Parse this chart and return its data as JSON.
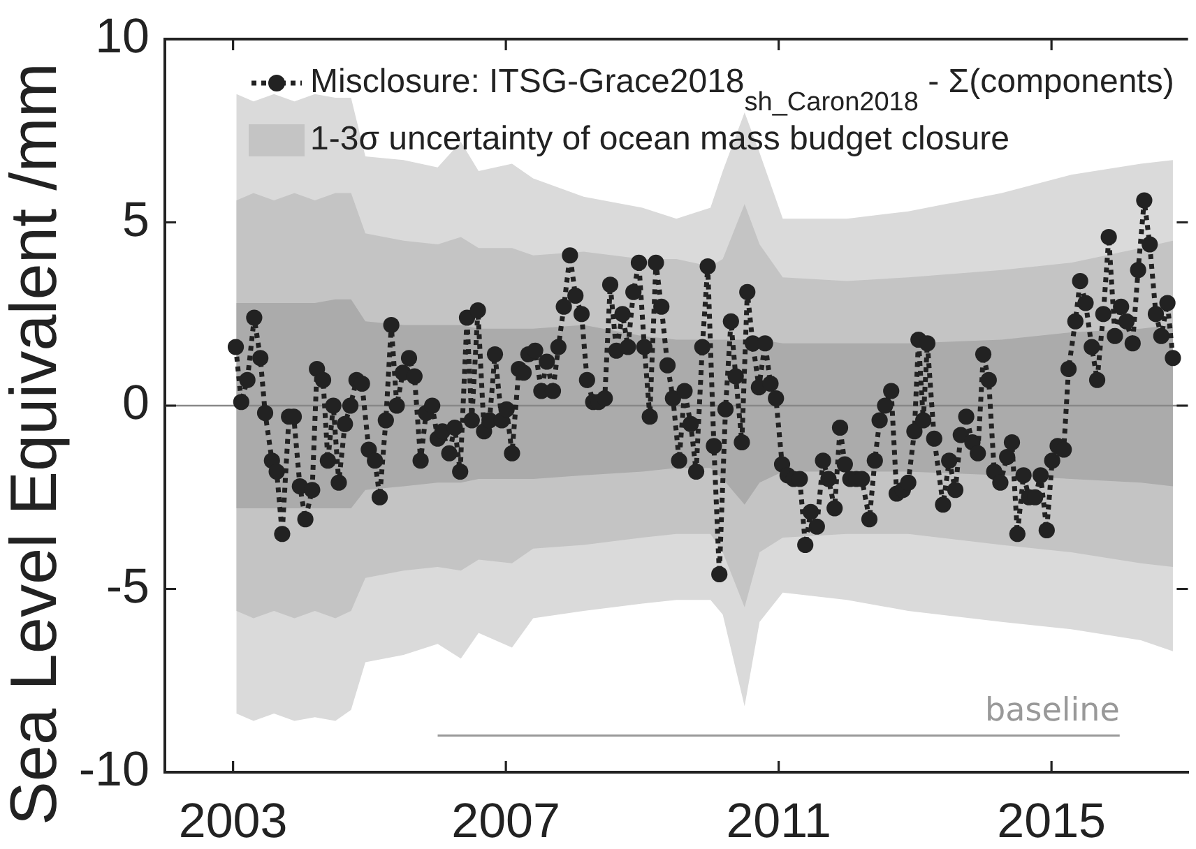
{
  "chart_data": {
    "type": "line",
    "ylabel": "Sea Level Equivalent /mm",
    "xlim": [
      2002,
      2017
    ],
    "xticks": [
      2003,
      2007,
      2011,
      2015
    ],
    "ylim": [
      -10,
      10
    ],
    "yticks": [
      -10,
      -5,
      0,
      5,
      10
    ],
    "legend": "top left",
    "marker": "circle",
    "line_style": "dotted",
    "x": [
      2003.04,
      2003.12,
      2003.21,
      2003.31,
      2003.4,
      2003.47,
      2003.57,
      2003.64,
      2003.72,
      2003.82,
      2003.89,
      2003.98,
      2004.06,
      2004.16,
      2004.23,
      2004.32,
      2004.39,
      2004.47,
      2004.55,
      2004.64,
      2004.72,
      2004.81,
      2004.89,
      2004.99,
      2005.08,
      2005.15,
      2005.24,
      2005.32,
      2005.4,
      2005.49,
      2005.58,
      2005.66,
      2005.75,
      2005.83,
      2005.92,
      2006.0,
      2006.07,
      2006.17,
      2006.25,
      2006.33,
      2006.43,
      2006.5,
      2006.59,
      2006.68,
      2006.76,
      2006.84,
      2006.94,
      2007.01,
      2007.09,
      2007.19,
      2007.26,
      2007.33,
      2007.43,
      2007.52,
      2007.6,
      2007.69,
      2007.77,
      2007.85,
      2007.94,
      2008.02,
      2008.11,
      2008.19,
      2008.28,
      2008.36,
      2008.45,
      2008.53,
      2008.62,
      2008.71,
      2008.79,
      2008.87,
      2008.95,
      2009.03,
      2009.11,
      2009.2,
      2009.28,
      2009.37,
      2009.45,
      2009.54,
      2009.62,
      2009.71,
      2009.79,
      2009.88,
      2009.96,
      2010.05,
      2010.13,
      2010.22,
      2010.3,
      2010.37,
      2010.46,
      2010.54,
      2010.62,
      2010.71,
      2010.8,
      2010.88,
      2010.96,
      2011.05,
      2011.13,
      2011.22,
      2011.31,
      2011.39,
      2011.47,
      2011.56,
      2011.65,
      2011.73,
      2011.82,
      2011.9,
      2011.97,
      2012.05,
      2012.14,
      2012.22,
      2012.33,
      2012.41,
      2012.48,
      2012.56,
      2012.65,
      2012.73,
      2012.82,
      2012.9,
      2012.99,
      2013.05,
      2013.12,
      2013.18,
      2013.28,
      2013.41,
      2013.5,
      2013.59,
      2013.67,
      2013.75,
      2013.84,
      2013.92,
      2014.0,
      2014.08,
      2014.16,
      2014.25,
      2014.35,
      2014.42,
      2014.5,
      2014.59,
      2014.67,
      2014.76,
      2014.84,
      2014.93,
      2015.01,
      2015.09,
      2015.18,
      2015.25,
      2015.35,
      2015.42,
      2015.5,
      2015.59,
      2015.67,
      2015.76,
      2015.84,
      2015.93,
      2016.02,
      2016.1,
      2016.19,
      2016.27,
      2016.36,
      2016.44,
      2016.53,
      2016.61,
      2016.7,
      2016.78
    ],
    "series": [
      {
        "name": "Misclosure: ITSG-Grace2018$_{sh_Caron2018}$ - Σ(components)",
        "color": "#222222",
        "values": [
          1.6,
          0.1,
          0.7,
          2.4,
          1.3,
          -0.2,
          -1.5,
          -1.8,
          -3.5,
          -0.3,
          -0.3,
          -2.2,
          -3.1,
          -2.3,
          1.0,
          0.7,
          -1.5,
          0.0,
          -2.1,
          -0.5,
          0.0,
          0.7,
          0.6,
          -1.2,
          -1.5,
          -2.5,
          -0.4,
          2.2,
          0.0,
          0.9,
          1.3,
          0.8,
          -1.5,
          -0.2,
          0.0,
          -0.9,
          -0.7,
          -1.3,
          -0.6,
          -1.8,
          2.4,
          -0.4,
          2.6,
          -0.7,
          -0.4,
          1.4,
          -0.4,
          -0.1,
          -1.3,
          1.0,
          0.9,
          1.4,
          1.5,
          0.4,
          1.2,
          0.4,
          1.6,
          2.7,
          4.1,
          3.0,
          2.5,
          0.7,
          0.1,
          0.1,
          0.2,
          3.3,
          1.5,
          2.5,
          1.6,
          3.1,
          3.9,
          1.6,
          -0.3,
          3.9,
          2.7,
          1.1,
          0.2,
          -1.5,
          0.4,
          -0.5,
          -1.8,
          1.6,
          3.8,
          -1.1,
          -4.6,
          -0.1,
          2.3,
          0.8,
          -1.0,
          3.1,
          1.7,
          0.5,
          1.7,
          0.6,
          0.2,
          -1.6,
          -1.9,
          -2.0,
          -2.0,
          -3.8,
          -2.9,
          -3.3,
          -1.5,
          -2.0,
          -2.8,
          -0.6,
          -1.6,
          -2.0,
          -2.0,
          -2.0,
          -3.1,
          -1.5,
          -0.4,
          0.0,
          0.4,
          -2.4,
          -2.3,
          -2.1,
          -0.7,
          1.8,
          -0.4,
          1.7,
          -0.9,
          -2.7,
          -1.5,
          -2.3,
          -0.8,
          -0.3,
          -1.0,
          -1.3,
          1.4,
          0.7,
          -1.8,
          -2.1,
          -1.4,
          -1.0,
          -3.5,
          -1.9,
          -2.5,
          -2.5,
          -1.9,
          -3.4,
          -1.5,
          -1.1,
          -1.2,
          1.0,
          2.3,
          3.4,
          2.8,
          1.6,
          0.7,
          2.5,
          4.6,
          1.9,
          2.7,
          2.3,
          1.7,
          3.7,
          5.6,
          4.4,
          2.5,
          1.9,
          2.8,
          1.3
        ]
      },
      {
        "color": "#ababab",
        "x": [
          2003.05,
          2003.3,
          2003.6,
          2003.9,
          2004.2,
          2004.5,
          2004.73,
          2004.94,
          2005.5,
          2006.0,
          2006.34,
          2006.6,
          2007.09,
          2007.4,
          2008.14,
          2009.0,
          2009.5,
          2010.0,
          2010.18,
          2010.5,
          2010.72,
          2011.06,
          2012.0,
          2012.9,
          2014.27,
          2015.29,
          2016.31,
          2016.78
        ],
        "values": [
          null,
          null,
          null,
          null,
          null,
          null,
          null,
          null,
          null,
          null,
          null,
          null,
          null,
          null,
          null,
          null,
          null,
          null,
          null,
          null,
          null,
          null,
          null,
          null,
          null,
          null,
          null,
          null
        ],
        "upper": [
          2.8,
          2.8,
          2.8,
          2.8,
          2.8,
          2.9,
          2.9,
          2.3,
          2.2,
          2.2,
          2.2,
          2.1,
          2.1,
          2.1,
          2.2,
          1.9,
          1.8,
          1.8,
          1.8,
          1.8,
          1.8,
          1.7,
          1.7,
          1.7,
          1.8,
          2.0,
          2.1,
          2.2
        ],
        "lower": [
          -2.8,
          -2.8,
          -2.8,
          -2.8,
          -2.8,
          -2.8,
          -2.8,
          -2.3,
          -2.2,
          -2.1,
          -2.1,
          -2.0,
          -2.0,
          -2.0,
          -1.9,
          -1.8,
          -1.7,
          -1.7,
          -2.0,
          -2.7,
          -2.1,
          -1.8,
          -1.8,
          -1.8,
          -1.9,
          -2.0,
          -2.1,
          -2.2
        ]
      },
      {
        "name": "1-3σ uncertainty of ocean mass budget closure",
        "color": "#c4c4c4",
        "x": [
          2003.05,
          2003.3,
          2003.6,
          2003.9,
          2004.2,
          2004.5,
          2004.73,
          2004.94,
          2005.5,
          2006.0,
          2006.34,
          2006.6,
          2007.09,
          2007.4,
          2008.14,
          2009.0,
          2009.5,
          2010.0,
          2010.18,
          2010.5,
          2010.72,
          2011.06,
          2012.0,
          2012.9,
          2014.27,
          2015.29,
          2016.31,
          2016.78
        ],
        "values": [
          null,
          null,
          null,
          null,
          null,
          null,
          null,
          null,
          null,
          null,
          null,
          null,
          null,
          null,
          null,
          null,
          null,
          null,
          null,
          null,
          null,
          null,
          null,
          null,
          null,
          null,
          null,
          null
        ],
        "upper": [
          5.6,
          5.8,
          5.6,
          5.8,
          5.6,
          5.8,
          5.8,
          4.7,
          4.5,
          4.4,
          4.6,
          4.3,
          4.3,
          4.1,
          4.2,
          4.0,
          4.0,
          3.8,
          4.0,
          5.5,
          4.4,
          3.5,
          3.4,
          3.5,
          3.7,
          3.9,
          4.3,
          4.5
        ],
        "lower": [
          -5.6,
          -5.8,
          -5.6,
          -5.8,
          -5.6,
          -5.8,
          -5.6,
          -4.7,
          -4.5,
          -4.4,
          -4.5,
          -4.2,
          -4.3,
          -3.9,
          -3.8,
          -3.6,
          -3.5,
          -3.5,
          -4.0,
          -5.5,
          -4.0,
          -3.6,
          -3.5,
          -3.5,
          -3.8,
          -4.0,
          -4.3,
          -4.4
        ]
      },
      {
        "color": "#dadada",
        "x": [
          2003.05,
          2003.3,
          2003.6,
          2003.9,
          2004.2,
          2004.5,
          2004.73,
          2004.94,
          2005.5,
          2006.0,
          2006.34,
          2006.6,
          2007.09,
          2007.4,
          2008.14,
          2009.0,
          2009.5,
          2010.0,
          2010.18,
          2010.5,
          2010.72,
          2011.06,
          2012.0,
          2012.9,
          2014.27,
          2015.29,
          2016.31,
          2016.78
        ],
        "values": [
          null,
          null,
          null,
          null,
          null,
          null,
          null,
          null,
          null,
          null,
          null,
          null,
          null,
          null,
          null,
          null,
          null,
          null,
          null,
          null,
          null,
          null,
          null,
          null,
          null,
          null,
          null,
          null
        ],
        "upper": [
          8.5,
          8.3,
          8.5,
          8.3,
          8.5,
          8.4,
          8.4,
          6.8,
          6.7,
          6.5,
          7.2,
          6.4,
          6.6,
          6.2,
          5.7,
          5.4,
          5.1,
          5.4,
          6.4,
          8.0,
          6.9,
          5.1,
          5.1,
          5.3,
          5.8,
          6.3,
          6.6,
          6.7
        ],
        "lower": [
          -8.4,
          -8.6,
          -8.4,
          -8.6,
          -8.5,
          -8.6,
          -8.3,
          -7.0,
          -6.8,
          -6.5,
          -6.9,
          -6.2,
          -6.6,
          -5.8,
          -5.6,
          -5.4,
          -5.3,
          -5.3,
          -5.7,
          -8.2,
          -5.9,
          -5.1,
          -5.3,
          -5.6,
          -5.9,
          -6.1,
          -6.4,
          -6.7
        ]
      },
      {
        "color": "#999999",
        "x": [
          2006,
          2016
        ],
        "values": [
          -9,
          -9
        ],
        "marker": "none",
        "line_style": "solid"
      }
    ],
    "ref_lines": [
      {
        "axis": "y",
        "value": 0,
        "color": "#888888"
      }
    ],
    "annotations": [
      {
        "text": "baseline",
        "x": 2016,
        "y": -9
      }
    ]
  }
}
